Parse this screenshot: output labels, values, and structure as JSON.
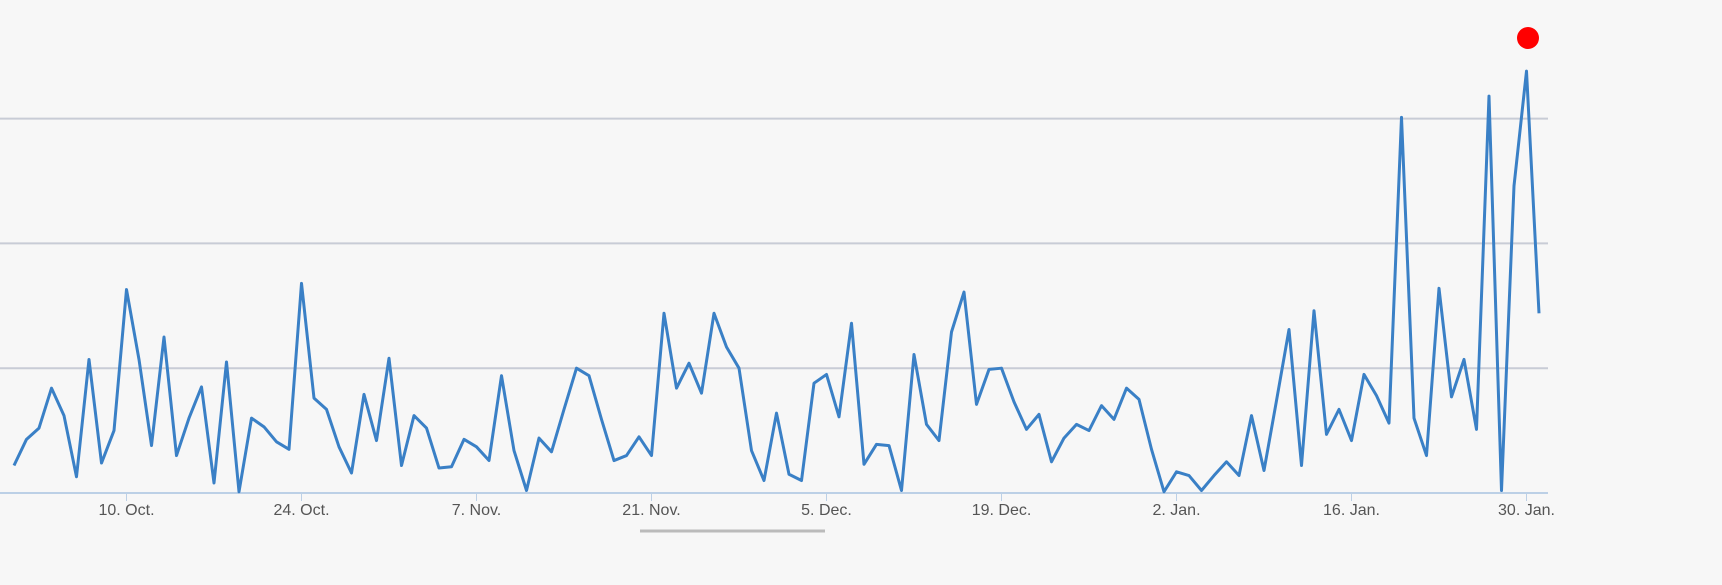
{
  "chart_data": {
    "type": "line",
    "color": "#3a80c6",
    "x": [
      0,
      1,
      2,
      3,
      4,
      5,
      6,
      7,
      8,
      9,
      10,
      11,
      12,
      13,
      14,
      15,
      16,
      17,
      18,
      19,
      20,
      21,
      22,
      23,
      24,
      25,
      26,
      27,
      28,
      29,
      30,
      31,
      32,
      33,
      34,
      35,
      36,
      37,
      38,
      39,
      40,
      41,
      42,
      43,
      44,
      45,
      46,
      47,
      48,
      49,
      50,
      51,
      52,
      53,
      54,
      55,
      56,
      57,
      58,
      59,
      60,
      61,
      62,
      63,
      64,
      65,
      66,
      67,
      68,
      69,
      70,
      71,
      72,
      73,
      74,
      75,
      76,
      77,
      78,
      79,
      80,
      81,
      82,
      83,
      84,
      85,
      86,
      87,
      88,
      89,
      90,
      91,
      92,
      93,
      94,
      95,
      96,
      97,
      98,
      99,
      100,
      101,
      102,
      103,
      104,
      105,
      106,
      107,
      108,
      109,
      110,
      111,
      112,
      113,
      114,
      115,
      116,
      117,
      118,
      119,
      120,
      121,
      122
    ],
    "values": [
      2.2,
      4.3,
      5.2,
      8.4,
      6.2,
      1.3,
      10.7,
      2.4,
      5.0,
      16.3,
      10.7,
      3.8,
      12.5,
      3.0,
      6.0,
      8.5,
      0.8,
      10.5,
      0.1,
      6.0,
      5.3,
      4.1,
      3.5,
      16.8,
      7.6,
      6.7,
      3.7,
      1.6,
      7.9,
      4.2,
      10.8,
      2.2,
      6.2,
      5.2,
      2.0,
      2.1,
      4.3,
      3.7,
      2.6,
      9.4,
      3.4,
      0.2,
      4.4,
      3.3,
      6.7,
      10.0,
      9.4,
      5.9,
      2.6,
      3.0,
      4.5,
      3.0,
      14.4,
      8.4,
      10.4,
      8.0,
      14.4,
      11.7,
      10.0,
      3.4,
      1.0,
      6.4,
      1.5,
      1.0,
      8.8,
      9.5,
      6.1,
      13.6,
      2.3,
      3.9,
      3.8,
      0.2,
      11.1,
      5.5,
      4.2,
      12.9,
      16.1,
      7.1,
      9.9,
      10.0,
      7.3,
      5.1,
      6.3,
      2.5,
      4.4,
      5.5,
      5.0,
      7.0,
      5.9,
      8.4,
      7.5,
      3.5,
      0.1,
      1.7,
      1.4,
      0.2,
      1.4,
      2.5,
      1.4,
      6.2,
      1.8,
      7.4,
      13.1,
      2.2,
      14.6,
      4.7,
      6.7,
      4.2,
      9.5,
      7.8,
      5.6,
      30.1,
      6.0,
      3.0,
      16.4,
      7.7,
      10.7,
      5.1,
      31.8,
      0.2,
      24.6,
      33.8,
      14.4
    ],
    "xlim": [
      -1.12,
      122.72
    ],
    "xticks": [
      {
        "value": 9,
        "label": "10. Oct."
      },
      {
        "value": 23,
        "label": "24. Oct."
      },
      {
        "value": 37,
        "label": "7. Nov."
      },
      {
        "value": 51,
        "label": "21. Nov."
      },
      {
        "value": 65,
        "label": "5. Dec."
      },
      {
        "value": 79,
        "label": "19. Dec."
      },
      {
        "value": 93,
        "label": "2. Jan."
      },
      {
        "value": 107,
        "label": "16. Jan."
      },
      {
        "value": 121,
        "label": "30. Jan."
      }
    ],
    "ylim": [
      0,
      39.5
    ],
    "yticks": [
      0,
      10,
      20,
      30
    ],
    "grid": true
  }
}
